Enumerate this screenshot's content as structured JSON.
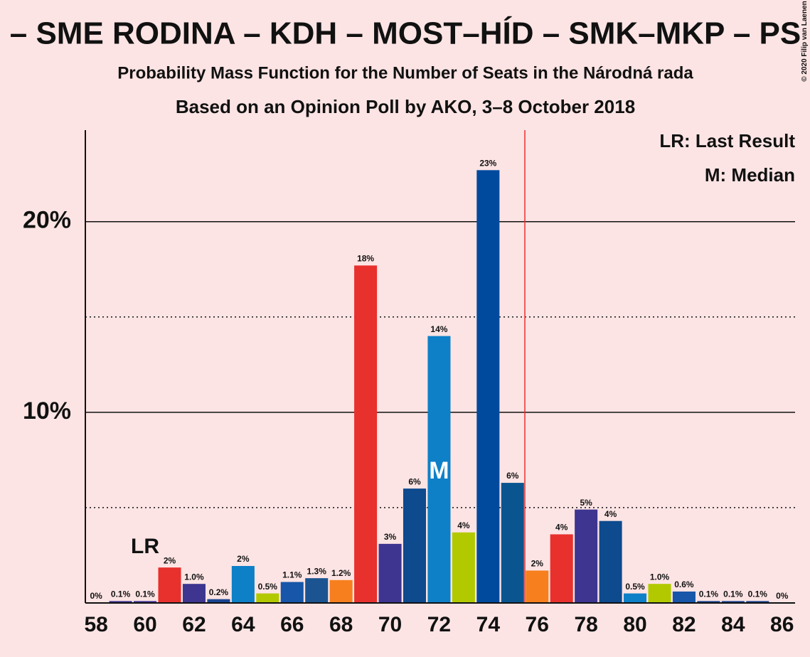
{
  "chart_data": {
    "type": "bar",
    "title": "– SME RODINA – KDH – MOST–HÍD – SMK–MKP – PS",
    "subtitle": "Probability Mass Function for the Number of Seats in the Národná rada",
    "subtitle2": "Based on an Opinion Poll by AKO, 3–8 October 2018",
    "copyright": "© 2020 Filip van Laenen",
    "legend_lr": "LR: Last Result",
    "legend_m": "M: Median",
    "x": [
      58,
      59,
      60,
      61,
      62,
      63,
      64,
      65,
      66,
      67,
      68,
      69,
      70,
      71,
      72,
      73,
      74,
      75,
      76,
      77,
      78,
      79,
      80,
      81,
      82,
      83,
      84,
      85,
      86
    ],
    "values": [
      0,
      0.1,
      0.1,
      1.86,
      1.0,
      0.2,
      1.94,
      0.5,
      1.1,
      1.3,
      1.2,
      17.7,
      3.1,
      6.0,
      14.0,
      3.7,
      22.7,
      6.3,
      1.7,
      3.6,
      4.9,
      4.3,
      0.5,
      1.0,
      0.6,
      0.1,
      0.1,
      0.1,
      0
    ],
    "value_labels": [
      "0%",
      "0.1%",
      "0.1%",
      "2%",
      "1.0%",
      "0.2%",
      "2%",
      "0.5%",
      "1.1%",
      "1.3%",
      "1.2%",
      "18%",
      "3%",
      "6%",
      "14%",
      "4%",
      "23%",
      "6%",
      "2%",
      "4%",
      "5%",
      "4%",
      "0.5%",
      "1.0%",
      "0.6%",
      "0.1%",
      "0.1%",
      "0.1%",
      "0%"
    ],
    "colors": [
      "#3d3590",
      "#3d3590",
      "#3d3590",
      "#e8302d",
      "#3d3590",
      "#1b4691",
      "#0e80c8",
      "#b2c900",
      "#1756a8",
      "#1b5490",
      "#f77f1d",
      "#e8302d",
      "#3d3590",
      "#0d4a8e",
      "#0e80c8",
      "#b2c900",
      "#004a9e",
      "#0a5590",
      "#f77f1d",
      "#e8302d",
      "#3d3590",
      "#0d4a8e",
      "#0e80c8",
      "#b2c900",
      "#1756a8",
      "#1b4691",
      "#1b4691",
      "#1b4691",
      "#1b4691"
    ],
    "xlim": [
      57.56,
      86.53
    ],
    "xticks": [
      58,
      60,
      62,
      64,
      66,
      68,
      70,
      72,
      74,
      76,
      78,
      80,
      82,
      84,
      86
    ],
    "ylim": [
      0,
      24.8
    ],
    "yticks": [
      {
        "value": 10,
        "label": "10%"
      },
      {
        "value": 20,
        "label": "20%"
      }
    ],
    "minor_gridlines": [
      5,
      15
    ],
    "majority_line": 75.5,
    "last_result": 60,
    "last_result_label": "LR",
    "median": 72,
    "median_label": "M"
  }
}
